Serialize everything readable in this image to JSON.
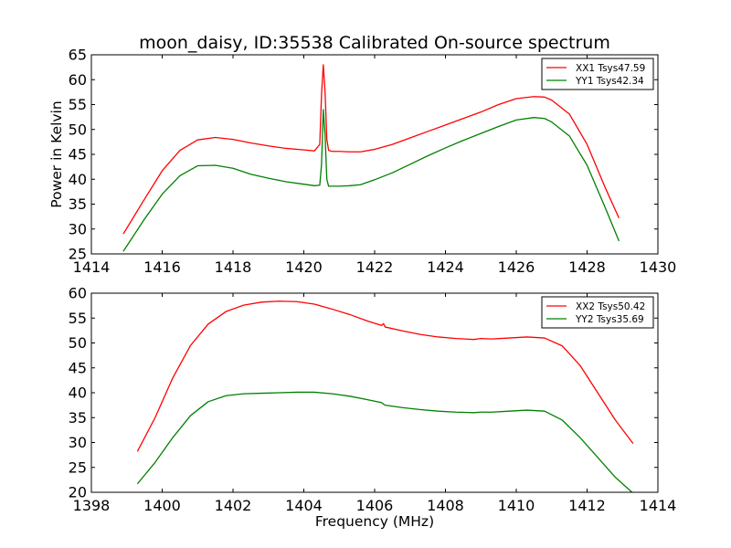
{
  "title": "moon_daisy, ID:35538 Calibrated On-source spectrum",
  "colors": {
    "red": "#ff0000",
    "green": "#008000",
    "axes": "#000000",
    "background": "#ffffff"
  },
  "chart_data": [
    {
      "type": "line",
      "title": "moon_daisy, ID:35538 Calibrated On-source spectrum",
      "xlabel": "",
      "ylabel": "Power in Kelvin",
      "xlim": [
        1414,
        1430
      ],
      "ylim": [
        25,
        65
      ],
      "xticks": [
        "1414",
        "1416",
        "1418",
        "1420",
        "1422",
        "1424",
        "1426",
        "1428",
        "1430"
      ],
      "yticks": [
        "25",
        "30",
        "35",
        "40",
        "45",
        "50",
        "55",
        "60",
        "65"
      ],
      "grid": false,
      "legend_position": "top-right",
      "series": [
        {
          "name": "XX1 Tsys47.59",
          "color": "#ff0000",
          "x": [
            1414.9,
            1415.5,
            1416.0,
            1416.5,
            1417.0,
            1417.5,
            1418.0,
            1418.5,
            1419.0,
            1419.5,
            1420.0,
            1420.3,
            1420.45,
            1420.5,
            1420.55,
            1420.6,
            1420.65,
            1420.7,
            1420.8,
            1421.0,
            1421.3,
            1421.6,
            1422.0,
            1422.5,
            1423.0,
            1423.5,
            1424.0,
            1424.5,
            1425.0,
            1425.5,
            1426.0,
            1426.5,
            1426.8,
            1427.0,
            1427.5,
            1428.0,
            1428.5,
            1428.9
          ],
          "values": [
            29.0,
            36.0,
            41.7,
            45.8,
            47.9,
            48.4,
            48.0,
            47.3,
            46.7,
            46.2,
            45.9,
            45.7,
            47.0,
            57.0,
            63.0,
            57.5,
            48.0,
            45.8,
            45.6,
            45.6,
            45.5,
            45.5,
            46.0,
            47.0,
            48.3,
            49.6,
            50.9,
            52.2,
            53.5,
            55.0,
            56.2,
            56.6,
            56.5,
            55.9,
            53.1,
            47.0,
            38.5,
            32.2
          ]
        },
        {
          "name": "YY1 Tsys42.34",
          "color": "#008000",
          "x": [
            1414.9,
            1415.5,
            1416.0,
            1416.5,
            1417.0,
            1417.5,
            1418.0,
            1418.5,
            1419.0,
            1419.5,
            1420.0,
            1420.3,
            1420.45,
            1420.5,
            1420.55,
            1420.6,
            1420.65,
            1420.7,
            1420.8,
            1421.0,
            1421.3,
            1421.6,
            1422.0,
            1422.5,
            1423.0,
            1423.5,
            1424.0,
            1424.5,
            1425.0,
            1425.5,
            1426.0,
            1426.5,
            1426.8,
            1427.0,
            1427.5,
            1428.0,
            1428.5,
            1428.9
          ],
          "values": [
            25.5,
            32.0,
            37.0,
            40.7,
            42.7,
            42.8,
            42.2,
            41.0,
            40.2,
            39.5,
            39.0,
            38.7,
            38.8,
            43.0,
            54.0,
            49.0,
            40.0,
            38.6,
            38.6,
            38.6,
            38.7,
            38.9,
            39.9,
            41.3,
            43.0,
            44.7,
            46.3,
            47.8,
            49.2,
            50.6,
            51.9,
            52.4,
            52.2,
            51.5,
            48.7,
            42.8,
            34.5,
            27.6
          ]
        }
      ]
    },
    {
      "type": "line",
      "title": "",
      "xlabel": "Frequency (MHz)",
      "ylabel": "",
      "xlim": [
        1398,
        1414
      ],
      "ylim": [
        20,
        60
      ],
      "xticks": [
        "1398",
        "1400",
        "1402",
        "1404",
        "1406",
        "1408",
        "1410",
        "1412",
        "1414"
      ],
      "yticks": [
        "20",
        "25",
        "30",
        "35",
        "40",
        "45",
        "50",
        "55",
        "60"
      ],
      "grid": false,
      "legend_position": "top-right",
      "series": [
        {
          "name": "XX2 Tsys50.42",
          "color": "#ff0000",
          "x": [
            1399.3,
            1399.8,
            1400.3,
            1400.8,
            1401.3,
            1401.8,
            1402.3,
            1402.8,
            1403.3,
            1403.8,
            1404.3,
            1404.8,
            1405.3,
            1405.8,
            1406.2,
            1406.25,
            1406.3,
            1406.8,
            1407.3,
            1407.8,
            1408.3,
            1408.8,
            1409.0,
            1409.3,
            1409.8,
            1410.3,
            1410.8,
            1411.3,
            1411.8,
            1412.3,
            1412.8,
            1413.3
          ],
          "values": [
            28.2,
            35.0,
            43.0,
            49.5,
            53.8,
            56.3,
            57.6,
            58.2,
            58.4,
            58.3,
            57.8,
            56.8,
            55.7,
            54.4,
            53.5,
            53.9,
            53.2,
            52.4,
            51.7,
            51.2,
            50.9,
            50.7,
            50.9,
            50.8,
            51.0,
            51.2,
            51.0,
            49.4,
            45.5,
            40.0,
            34.5,
            29.8
          ]
        },
        {
          "name": "YY2 Tsys35.69",
          "color": "#008000",
          "x": [
            1399.3,
            1399.8,
            1400.3,
            1400.8,
            1401.3,
            1401.8,
            1402.3,
            1402.8,
            1403.3,
            1403.8,
            1404.3,
            1404.8,
            1405.3,
            1405.8,
            1406.2,
            1406.25,
            1406.3,
            1406.8,
            1407.3,
            1407.8,
            1408.3,
            1408.8,
            1409.0,
            1409.3,
            1409.8,
            1410.3,
            1410.8,
            1411.3,
            1411.8,
            1412.3,
            1412.8,
            1413.3
          ],
          "values": [
            21.7,
            26.0,
            31.0,
            35.4,
            38.2,
            39.4,
            39.8,
            39.9,
            40.0,
            40.1,
            40.1,
            39.8,
            39.3,
            38.6,
            38.0,
            37.7,
            37.5,
            37.0,
            36.6,
            36.3,
            36.1,
            36.0,
            36.1,
            36.1,
            36.3,
            36.5,
            36.3,
            34.5,
            31.0,
            27.0,
            23.0,
            19.8
          ]
        }
      ]
    }
  ]
}
